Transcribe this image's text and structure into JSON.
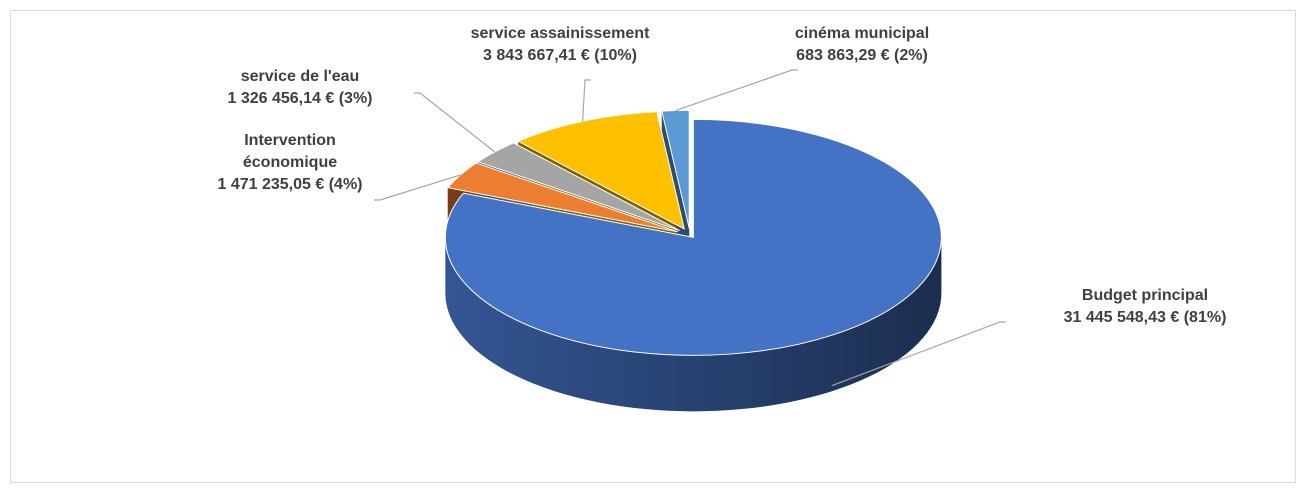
{
  "chart_data": {
    "type": "pie3d",
    "categories": [
      "Budget principal",
      "Intervention économique",
      "service de l'eau",
      "service assainissement",
      "cinéma municipal"
    ],
    "values": [
      31445548.43,
      1471235.05,
      1326456.14,
      3843667.41,
      683863.29
    ],
    "value_labels": [
      "31 445 548,43 € (81%)",
      "1 471 235,05 € (4%)",
      "1 326 456,14 € (3%)",
      "3 843 667,41 € (10%)",
      "683 863,29 € (2%)"
    ],
    "colors": [
      "#4472c4",
      "#ed7d31",
      "#a5a5a5",
      "#ffc000",
      "#5b9bd5"
    ]
  }
}
